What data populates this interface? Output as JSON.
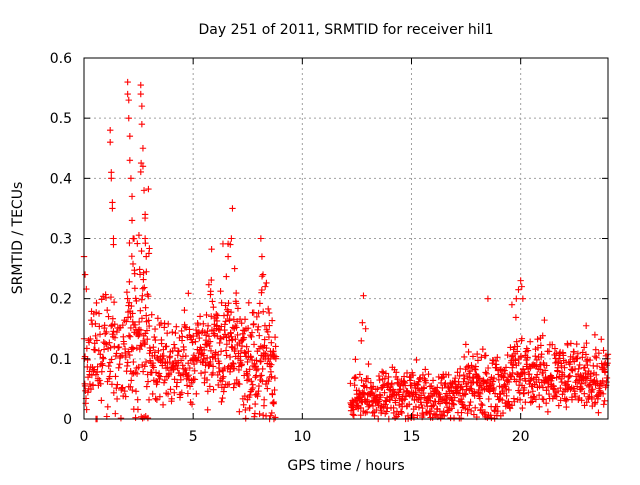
{
  "chart_data": {
    "type": "scatter",
    "title": "Day 251 of 2011, SRMTID for receiver hil1",
    "xlabel": "GPS time / hours",
    "ylabel": "SRMTID / TECUs",
    "xlim": [
      0,
      24
    ],
    "ylim": [
      0,
      0.6
    ],
    "xticks": [
      0,
      5,
      10,
      15,
      20
    ],
    "xtick_labels": [
      "0",
      "5",
      "10",
      "15",
      "20"
    ],
    "yticks": [
      0,
      0.1,
      0.2,
      0.3,
      0.4,
      0.5,
      0.6
    ],
    "ytick_labels": [
      "0",
      "0.1",
      "0.2",
      "0.3",
      "0.4",
      "0.5",
      "0.6"
    ],
    "grid": true,
    "legend": "none",
    "marker": "plus",
    "series": [
      {
        "name": "hil1",
        "color": "#ff0000",
        "segments": [
          {
            "x0": 0.0,
            "x1": 2.0,
            "n": 140,
            "base": 0.1,
            "spread": 0.07,
            "seed": 11
          },
          {
            "x0": 2.0,
            "x1": 3.0,
            "n": 110,
            "base": 0.14,
            "spread": 0.12,
            "seed": 12
          },
          {
            "x0": 3.0,
            "x1": 5.5,
            "n": 190,
            "base": 0.095,
            "spread": 0.05,
            "seed": 13
          },
          {
            "x0": 5.5,
            "x1": 7.0,
            "n": 150,
            "base": 0.12,
            "spread": 0.07,
            "seed": 14
          },
          {
            "x0": 7.0,
            "x1": 8.8,
            "n": 170,
            "base": 0.09,
            "spread": 0.07,
            "seed": 15
          },
          {
            "x0": 12.2,
            "x1": 17.0,
            "n": 360,
            "base": 0.035,
            "spread": 0.03,
            "seed": 16
          },
          {
            "x0": 17.0,
            "x1": 19.5,
            "n": 200,
            "base": 0.05,
            "spread": 0.04,
            "seed": 17
          },
          {
            "x0": 19.5,
            "x1": 24.0,
            "n": 360,
            "base": 0.07,
            "spread": 0.04,
            "seed": 18
          }
        ],
        "extra_points": [
          [
            0.0,
            0.27
          ],
          [
            0.05,
            0.24
          ],
          [
            0.05,
            0.055
          ],
          [
            0.55,
            0.0
          ],
          [
            0.6,
            0.0
          ],
          [
            1.2,
            0.48
          ],
          [
            1.2,
            0.46
          ],
          [
            1.25,
            0.41
          ],
          [
            1.25,
            0.4
          ],
          [
            1.3,
            0.36
          ],
          [
            1.3,
            0.35
          ],
          [
            1.35,
            0.3
          ],
          [
            1.35,
            0.29
          ],
          [
            2.0,
            0.56
          ],
          [
            2.0,
            0.54
          ],
          [
            2.05,
            0.53
          ],
          [
            2.05,
            0.5
          ],
          [
            2.1,
            0.47
          ],
          [
            2.1,
            0.43
          ],
          [
            2.15,
            0.4
          ],
          [
            2.2,
            0.37
          ],
          [
            2.2,
            0.33
          ],
          [
            2.25,
            0.3
          ],
          [
            2.6,
            0.555
          ],
          [
            2.6,
            0.54
          ],
          [
            2.65,
            0.52
          ],
          [
            2.65,
            0.49
          ],
          [
            2.7,
            0.45
          ],
          [
            2.7,
            0.42
          ],
          [
            2.75,
            0.38
          ],
          [
            2.8,
            0.34
          ],
          [
            2.8,
            0.3
          ],
          [
            2.85,
            0.27
          ],
          [
            6.8,
            0.35
          ],
          [
            6.75,
            0.3
          ],
          [
            6.7,
            0.29
          ],
          [
            6.6,
            0.27
          ],
          [
            6.9,
            0.25
          ],
          [
            8.1,
            0.3
          ],
          [
            8.15,
            0.27
          ],
          [
            8.2,
            0.24
          ],
          [
            8.3,
            0.22
          ],
          [
            8.5,
            0.0
          ],
          [
            8.6,
            0.01
          ],
          [
            8.7,
            0.0
          ],
          [
            12.8,
            0.205
          ],
          [
            12.75,
            0.16
          ],
          [
            12.7,
            0.13
          ],
          [
            12.9,
            0.15
          ],
          [
            20.0,
            0.23
          ],
          [
            20.05,
            0.22
          ],
          [
            19.9,
            0.215
          ],
          [
            20.1,
            0.2
          ],
          [
            19.8,
            0.2
          ],
          [
            19.6,
            0.19
          ],
          [
            18.5,
            0.2
          ],
          [
            23.0,
            0.155
          ],
          [
            23.4,
            0.14
          ]
        ]
      }
    ]
  }
}
